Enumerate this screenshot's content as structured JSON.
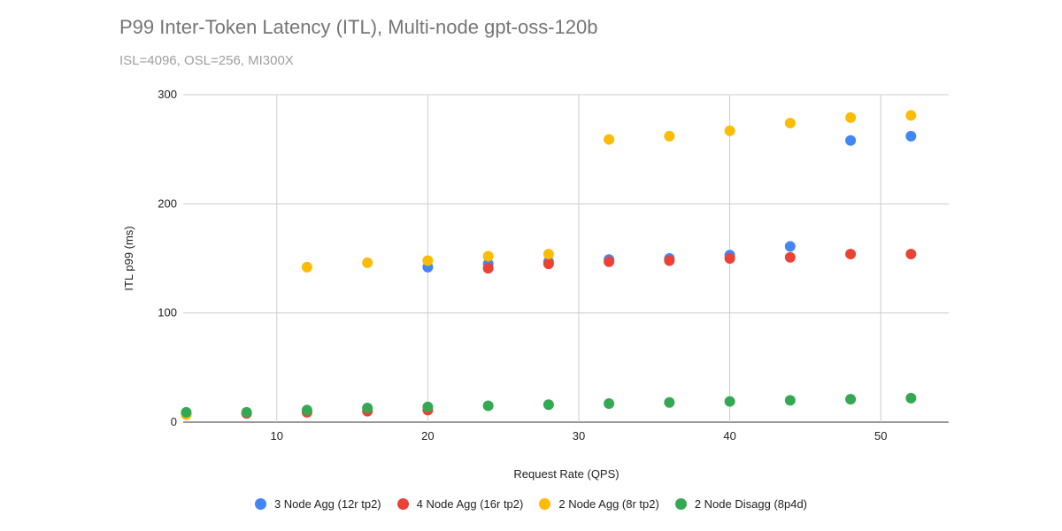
{
  "chart_data": {
    "type": "scatter",
    "title": "P99 Inter-Token Latency (ITL), Multi-node gpt-oss-120b",
    "subtitle": "ISL=4096, OSL=256, MI300X",
    "xlabel": "Request Rate (QPS)",
    "ylabel": "ITL p99 (ms)",
    "xlim": [
      3.8,
      54.5
    ],
    "ylim": [
      0,
      300
    ],
    "xticks": [
      10,
      20,
      30,
      40,
      50
    ],
    "yticks": [
      0,
      100,
      200,
      300
    ],
    "grid": true,
    "legend_position": "bottom",
    "series": [
      {
        "name": "3 Node Agg (12r tp2)",
        "color": "#4285f4",
        "x": [
          20,
          24,
          28,
          32,
          36,
          40,
          44,
          48,
          52
        ],
        "y": [
          142,
          145,
          147,
          149,
          150,
          153,
          161,
          258,
          262
        ]
      },
      {
        "name": "4 Node Agg (16r tp2)",
        "color": "#ea4335",
        "x": [
          4,
          8,
          12,
          16,
          20,
          24,
          28,
          32,
          36,
          40,
          44,
          48,
          52
        ],
        "y": [
          7,
          8,
          9,
          10,
          11,
          141,
          145,
          147,
          148,
          150,
          151,
          154,
          154
        ]
      },
      {
        "name": "2 Node Agg (8r tp2)",
        "color": "#fbbc04",
        "x": [
          4,
          12,
          16,
          20,
          24,
          28,
          32,
          36,
          40,
          44,
          48,
          52
        ],
        "y": [
          7,
          142,
          146,
          148,
          152,
          154,
          259,
          262,
          267,
          274,
          279,
          281
        ]
      },
      {
        "name": "2 Node Disagg (8p4d)",
        "color": "#34a853",
        "x": [
          4,
          8,
          12,
          16,
          20,
          24,
          28,
          32,
          36,
          40,
          44,
          48,
          52
        ],
        "y": [
          9,
          9,
          11,
          13,
          14,
          15,
          16,
          17,
          18,
          19,
          20,
          21,
          22
        ]
      }
    ]
  }
}
